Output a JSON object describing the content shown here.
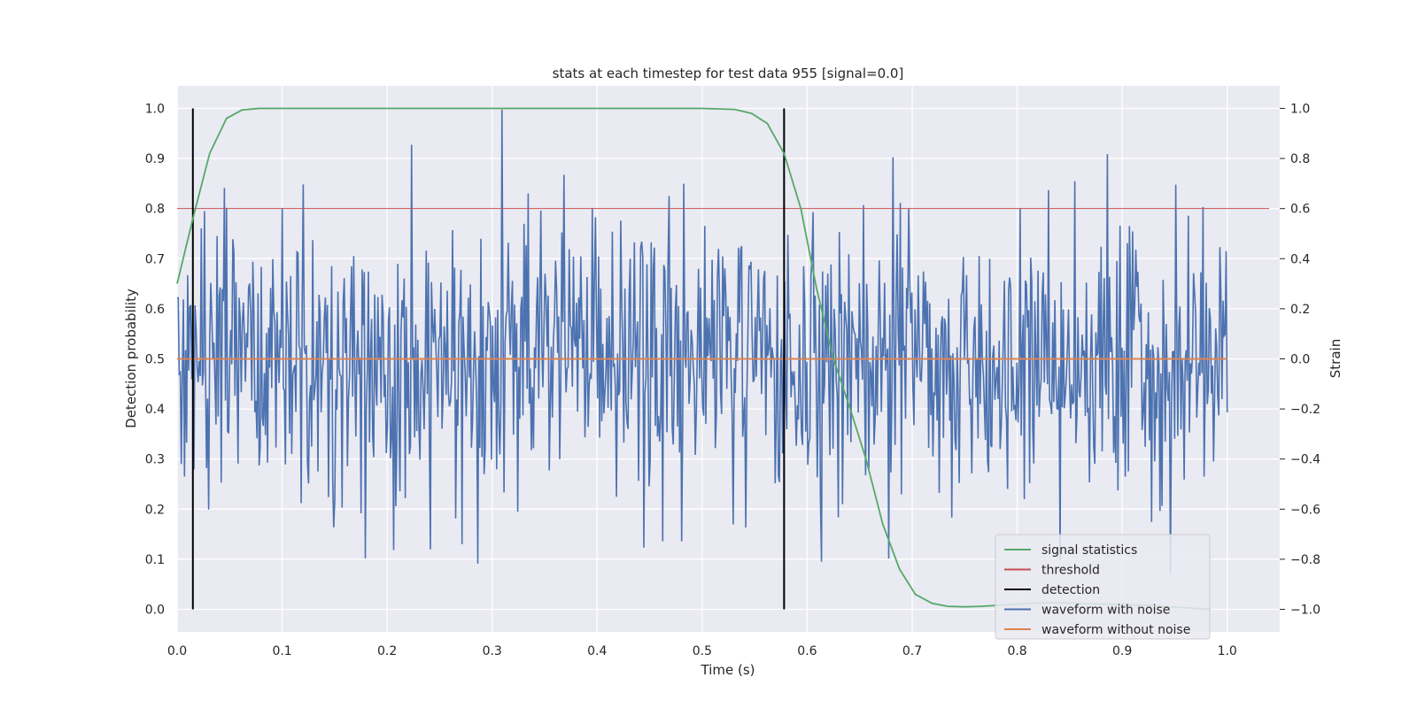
{
  "chart_data": {
    "type": "line",
    "title": "stats at each timestep for test data 955 [signal=0.0]",
    "xlabel": "Time (s)",
    "ylabel_left": "Detection probability",
    "ylabel_right": "Strain",
    "xlim": [
      0.0,
      1.05
    ],
    "ylim_left": [
      -0.045,
      1.045
    ],
    "ylim_right": [
      -1.09,
      1.09
    ],
    "x_ticks": [
      0.0,
      0.1,
      0.2,
      0.3,
      0.4,
      0.5,
      0.6,
      0.7,
      0.8,
      0.9,
      1.0
    ],
    "x_tick_labels": [
      "0.0",
      "0.1",
      "0.2",
      "0.3",
      "0.4",
      "0.5",
      "0.6",
      "0.7",
      "0.8",
      "0.9",
      "1.0"
    ],
    "y_left_ticks": [
      0.0,
      0.1,
      0.2,
      0.3,
      0.4,
      0.5,
      0.6,
      0.7,
      0.8,
      0.9,
      1.0
    ],
    "y_left_tick_labels": [
      "0.0",
      "0.1",
      "0.2",
      "0.3",
      "0.4",
      "0.5",
      "0.6",
      "0.7",
      "0.8",
      "0.9",
      "1.0"
    ],
    "y_right_ticks": [
      -1.0,
      -0.8,
      -0.6,
      -0.4,
      -0.2,
      0.0,
      0.2,
      0.4,
      0.6,
      0.8,
      1.0
    ],
    "y_right_tick_labels": [
      "−1.0",
      "−0.8",
      "−0.6",
      "−0.4",
      "−0.2",
      "0.0",
      "0.2",
      "0.4",
      "0.6",
      "0.8",
      "1.0"
    ],
    "grid": true,
    "legend_position": "lower-right",
    "series": [
      {
        "name": "signal statistics",
        "axis": "left",
        "color": "#55a868",
        "x": [
          0.0,
          0.015,
          0.031,
          0.047,
          0.062,
          0.078,
          0.094,
          0.2,
          0.3,
          0.4,
          0.5,
          0.531,
          0.547,
          0.562,
          0.578,
          0.594,
          0.609,
          0.625,
          0.641,
          0.656,
          0.672,
          0.688,
          0.703,
          0.719,
          0.734,
          0.75,
          0.766,
          0.781,
          0.797,
          0.812,
          0.828,
          0.844,
          0.859,
          0.875,
          0.891,
          0.906,
          0.922,
          0.937,
          0.953,
          0.969,
          0.984
        ],
        "y": [
          0.65,
          0.78,
          0.91,
          0.98,
          0.997,
          1.0,
          1.0,
          1.0,
          1.0,
          1.0,
          1.0,
          0.998,
          0.99,
          0.97,
          0.91,
          0.8,
          0.64,
          0.5,
          0.4,
          0.3,
          0.17,
          0.08,
          0.03,
          0.012,
          0.006,
          0.005,
          0.006,
          0.008,
          0.01,
          0.012,
          0.013,
          0.013,
          0.012,
          0.011,
          0.01,
          0.009,
          0.008,
          0.006,
          0.004,
          0.002,
          0.0
        ]
      },
      {
        "name": "threshold",
        "axis": "left",
        "color": "#c44e52",
        "x": [
          0.0,
          1.04
        ],
        "y": [
          0.8,
          0.8
        ]
      },
      {
        "name": "detection",
        "axis": "left",
        "color": "#000000",
        "segments": [
          {
            "x": 0.015,
            "y": [
              0.0,
              1.0
            ]
          },
          {
            "x": 0.578,
            "y": [
              0.0,
              1.0
            ]
          }
        ]
      },
      {
        "name": "waveform with noise",
        "axis": "right",
        "color": "#4c72b0",
        "x_start": 0.0,
        "x_end": 1.0,
        "points": 1000,
        "seed": 955,
        "amplitude_std": 0.3,
        "range": [
          -1.0,
          1.0
        ]
      },
      {
        "name": "waveform without noise",
        "axis": "right",
        "color": "#dd8452",
        "x": [
          0.0,
          1.0
        ],
        "y": [
          0.0,
          0.0
        ]
      }
    ]
  }
}
